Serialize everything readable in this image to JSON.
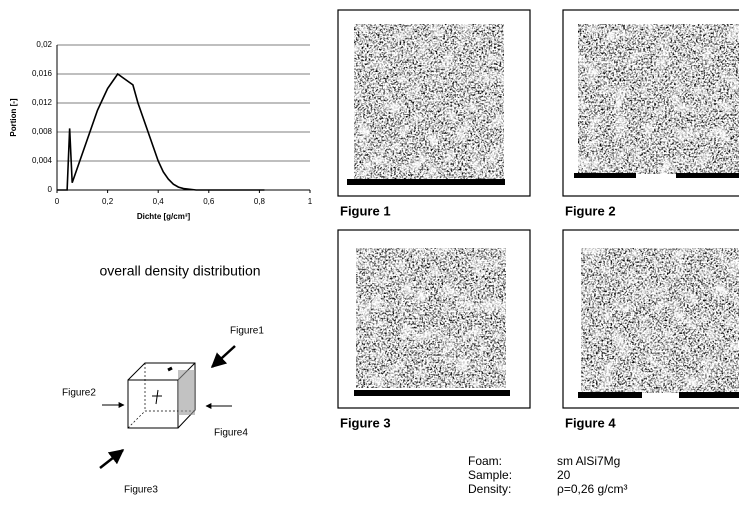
{
  "chart_data": {
    "type": "line",
    "x_label": "Dichte [g/cm³]",
    "y_label": "Portion [-]",
    "caption": "overall density distribution",
    "x": [
      0,
      0.02,
      0.04,
      0.05,
      0.06,
      0.08,
      0.1,
      0.12,
      0.14,
      0.16,
      0.18,
      0.2,
      0.22,
      0.24,
      0.26,
      0.28,
      0.3,
      0.32,
      0.34,
      0.36,
      0.38,
      0.4,
      0.42,
      0.44,
      0.46,
      0.48,
      0.5,
      0.55,
      0.6,
      0.7,
      0.82
    ],
    "values": [
      0,
      0,
      0,
      0.0085,
      0.001,
      0.003,
      0.005,
      0.007,
      0.009,
      0.011,
      0.0125,
      0.014,
      0.015,
      0.016,
      0.0155,
      0.015,
      0.0145,
      0.012,
      0.01,
      0.008,
      0.006,
      0.004,
      0.0025,
      0.0015,
      0.0008,
      0.0004,
      0.0002,
      0,
      0,
      0,
      0
    ],
    "color": "#000000",
    "xlim": [
      0,
      1
    ],
    "ylim": [
      0,
      0.02
    ],
    "xticks": [
      0,
      {
        "value": 0.2,
        "label": "0,2"
      },
      {
        "value": 0.4,
        "label": "0,4"
      },
      {
        "value": 0.6,
        "label": "0,6"
      },
      {
        "value": 0.8,
        "label": "0,8"
      },
      1
    ],
    "yticks": [
      0,
      {
        "value": 0.004,
        "label": "0,004"
      },
      {
        "value": 0.008,
        "label": "0,008"
      },
      {
        "value": 0.012,
        "label": "0,012"
      },
      {
        "value": 0.016,
        "label": "0,016"
      },
      {
        "value": 0.02,
        "label": "0,02"
      }
    ],
    "grid": true
  },
  "figures": [
    {
      "label": "Figure 1"
    },
    {
      "label": "Figure 2"
    },
    {
      "label": "Figure 3"
    },
    {
      "label": "Figure 4"
    }
  ],
  "diagram": {
    "labels": [
      "Figure1",
      "Figure2",
      "Figure3",
      "Figure4"
    ]
  },
  "info": {
    "rows": [
      [
        "Foam:",
        "sm AlSi7Mg"
      ],
      [
        "Sample:",
        "20"
      ],
      [
        "Density:",
        "ρ=0,26 g/cm³"
      ]
    ]
  }
}
